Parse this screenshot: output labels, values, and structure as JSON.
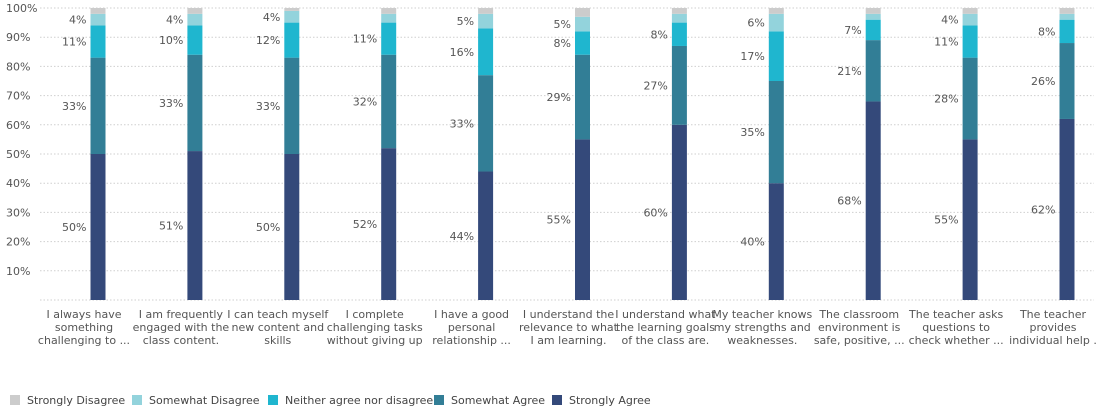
{
  "chart_data": {
    "type": "bar",
    "stacked": true,
    "percent": true,
    "ylim": [
      0,
      100
    ],
    "yticks": [
      "10%",
      "20%",
      "30%",
      "40%",
      "50%",
      "60%",
      "70%",
      "80%",
      "90%",
      "100%"
    ],
    "grid": true,
    "legend_position": "bottom-left",
    "categories": [
      [
        "I always have",
        "something",
        "challenging to ..."
      ],
      [
        "I am frequently",
        "engaged with the",
        "class content."
      ],
      [
        "I can teach myself",
        "new content and",
        "skills"
      ],
      [
        "I complete",
        "challenging tasks",
        "without giving up"
      ],
      [
        "I have a good",
        "personal",
        "relationship ..."
      ],
      [
        "I understand the",
        "relevance to what",
        "I am learning."
      ],
      [
        "I understand what",
        "the learning goals",
        "of the class are."
      ],
      [
        "My teacher knows",
        "my strengths and",
        "weaknesses."
      ],
      [
        "The classroom",
        "environment is",
        "safe, positive, ..."
      ],
      [
        "The teacher asks",
        "questions to",
        "check whether ..."
      ],
      [
        "The teacher",
        "provides",
        "individual help ."
      ]
    ],
    "series": [
      {
        "name": "Strongly Agree",
        "color": "#34497a",
        "values": [
          50,
          51,
          50,
          52,
          44,
          55,
          60,
          40,
          68,
          55,
          62
        ],
        "labels": [
          "50%",
          "51%",
          "50%",
          "52%",
          "44%",
          "55%",
          "60%",
          "40%",
          "68%",
          "55%",
          "62%"
        ]
      },
      {
        "name": "Somewhat Agree",
        "color": "#327e96",
        "values": [
          33,
          33,
          33,
          32,
          33,
          29,
          27,
          35,
          21,
          28,
          26
        ],
        "labels": [
          "33%",
          "33%",
          "33%",
          "32%",
          "33%",
          "29%",
          "27%",
          "35%",
          "21%",
          "28%",
          "26%"
        ]
      },
      {
        "name": "Neither agree nor disagree",
        "color": "#1fb6cf",
        "values": [
          11,
          10,
          12,
          11,
          16,
          8,
          8,
          17,
          7,
          11,
          8
        ],
        "labels": [
          "11%",
          "10%",
          "12%",
          "11%",
          "16%",
          "8%",
          "8%",
          "17%",
          "7%",
          "11%",
          "8%"
        ]
      },
      {
        "name": "Somewhat Disagree",
        "color": "#93d3dc",
        "values": [
          4,
          4,
          4,
          3,
          5,
          5,
          3,
          6,
          2,
          4,
          2
        ],
        "labels": [
          "4%",
          "4%",
          "4%",
          "",
          "5%",
          "5%",
          "",
          "6%",
          "",
          "4%",
          ""
        ]
      },
      {
        "name": "Strongly Disagree",
        "color": "#cccccc",
        "values": [
          2,
          2,
          1,
          2,
          2,
          3,
          2,
          2,
          2,
          2,
          2
        ],
        "labels": [
          "",
          "",
          "",
          "",
          "",
          "",
          "",
          "",
          "",
          "",
          ""
        ]
      }
    ],
    "legend_order": [
      "Strongly Disagree",
      "Somewhat Disagree",
      "Neither agree nor disagree",
      "Somewhat Agree",
      "Strongly Agree"
    ]
  }
}
